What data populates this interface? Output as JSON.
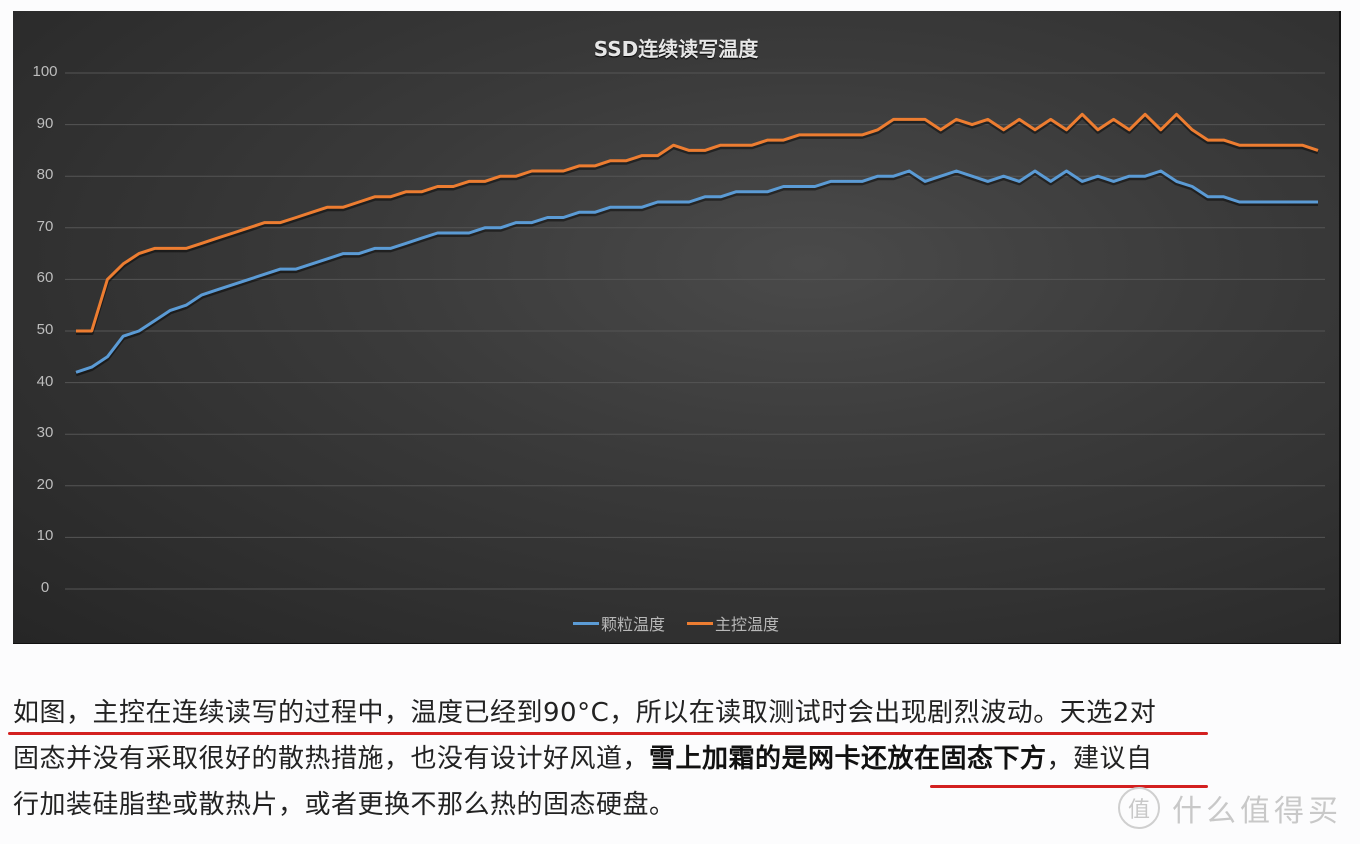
{
  "chart_data": {
    "type": "line",
    "title": "SSD连续读写温度",
    "xlabel": "",
    "ylabel": "",
    "ylim": [
      0,
      100
    ],
    "yticks": [
      0,
      10,
      20,
      30,
      40,
      50,
      60,
      70,
      80,
      90,
      100
    ],
    "grid": true,
    "legend_position": "bottom",
    "x": [
      1,
      2,
      3,
      4,
      5,
      6,
      7,
      8,
      9,
      10,
      11,
      12,
      13,
      14,
      15,
      16,
      17,
      18,
      19,
      20,
      21,
      22,
      23,
      24,
      25,
      26,
      27,
      28,
      29,
      30,
      31,
      32,
      33,
      34,
      35,
      36,
      37,
      38,
      39,
      40,
      41,
      42,
      43,
      44,
      45,
      46,
      47,
      48,
      49,
      50,
      51,
      52,
      53,
      54,
      55,
      56,
      57,
      58,
      59,
      60,
      61,
      62,
      63,
      64,
      65,
      66,
      67,
      68,
      69,
      70,
      71,
      72,
      73,
      74,
      75,
      76,
      77,
      78,
      79,
      80
    ],
    "series": [
      {
        "name": "颗粒温度",
        "color": "#5b9bd5",
        "values": [
          42,
          43,
          45,
          49,
          50,
          52,
          54,
          55,
          57,
          58,
          59,
          60,
          61,
          62,
          62,
          63,
          64,
          65,
          65,
          66,
          66,
          67,
          68,
          69,
          69,
          69,
          70,
          70,
          71,
          71,
          72,
          72,
          73,
          73,
          74,
          74,
          74,
          75,
          75,
          75,
          76,
          76,
          77,
          77,
          77,
          78,
          78,
          78,
          79,
          79,
          79,
          80,
          80,
          81,
          79,
          80,
          81,
          80,
          79,
          80,
          79,
          81,
          79,
          81,
          79,
          80,
          79,
          80,
          80,
          81,
          79,
          78,
          76,
          76,
          75,
          75,
          75,
          75,
          75,
          75
        ]
      },
      {
        "name": "主控温度",
        "color": "#ed7d31",
        "values": [
          50,
          50,
          60,
          63,
          65,
          66,
          66,
          66,
          67,
          68,
          69,
          70,
          71,
          71,
          72,
          73,
          74,
          74,
          75,
          76,
          76,
          77,
          77,
          78,
          78,
          79,
          79,
          80,
          80,
          81,
          81,
          81,
          82,
          82,
          83,
          83,
          84,
          84,
          86,
          85,
          85,
          86,
          86,
          86,
          87,
          87,
          88,
          88,
          88,
          88,
          88,
          89,
          91,
          91,
          91,
          89,
          91,
          90,
          91,
          89,
          91,
          89,
          91,
          89,
          92,
          89,
          91,
          89,
          92,
          89,
          92,
          89,
          87,
          87,
          86,
          86,
          86,
          86,
          86,
          85
        ]
      }
    ]
  },
  "caption": {
    "line1_underlined": "如图，主控在连续读写的过程中，温度已经到90°C，所以在读取测试时会出现剧烈波动。",
    "line1_rest": "天选2对",
    "line2_start": "固态并没有采取很好的散热措施，也没有设计好风道，",
    "line2_bold": "雪上加霜的是网卡还放在固态下方",
    "line2_end": "，建议自",
    "line3": "行加装硅脂垫或散热片，或者更换不那么热的固态硬盘。"
  },
  "watermark": {
    "logo": "值",
    "text": "什么值得买"
  }
}
